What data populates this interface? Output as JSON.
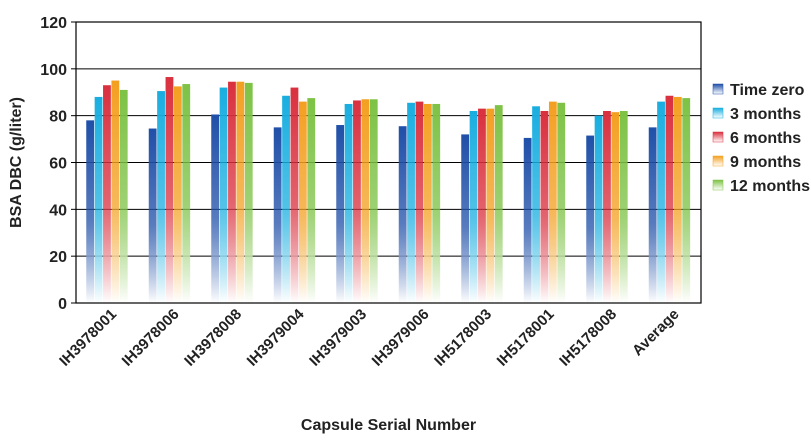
{
  "chart_data": {
    "type": "bar",
    "title": "",
    "xlabel": "Capsule Serial Number",
    "ylabel": "BSA DBC (g/liter)",
    "ylim": [
      0,
      120
    ],
    "yticks": [
      0,
      20,
      40,
      60,
      80,
      100,
      120
    ],
    "grid": true,
    "legend_position": "right",
    "categories": [
      "IH3978001",
      "IH3978006",
      "IH3978008",
      "IH3979004",
      "IH3979003",
      "IH3979006",
      "IH5178003",
      "IH5178001",
      "IH5178008",
      "Average"
    ],
    "series": [
      {
        "name": "Time zero",
        "color": "#1f4fa8",
        "values": [
          78,
          74.5,
          80.5,
          75,
          76,
          75.5,
          72,
          70.5,
          71.5,
          75
        ]
      },
      {
        "name": "3 months",
        "color": "#19aee0",
        "values": [
          88,
          90.5,
          92,
          88.5,
          85,
          85.5,
          82,
          84,
          80,
          86
        ]
      },
      {
        "name": "6 months",
        "color": "#d9303e",
        "values": [
          93,
          96.5,
          94.5,
          92,
          86.5,
          86,
          83,
          82,
          82,
          88.5
        ]
      },
      {
        "name": "9 months",
        "color": "#f3a021",
        "values": [
          95,
          92.5,
          94.5,
          86,
          87,
          85,
          83,
          86,
          81.5,
          88
        ]
      },
      {
        "name": "12 months",
        "color": "#7dc245",
        "values": [
          91,
          93.5,
          94,
          87.5,
          87,
          85,
          84.5,
          85.5,
          82,
          87.5
        ]
      }
    ]
  }
}
